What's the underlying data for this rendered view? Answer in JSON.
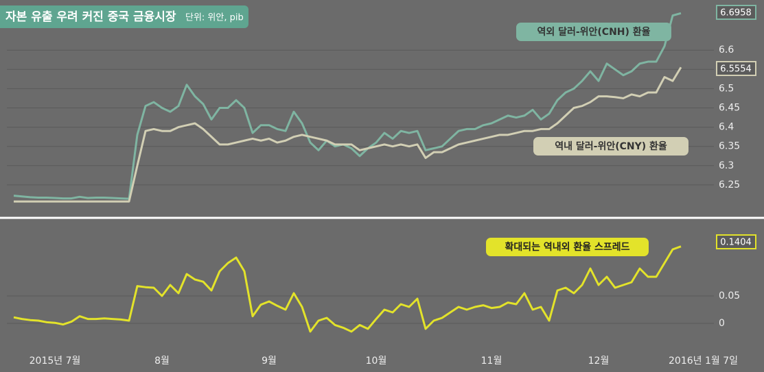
{
  "chart_data": {
    "type": "line",
    "title": "자본 유출 우려 커진 중국 금융시장",
    "subtitle": "단위: 위안, pib",
    "categories": [
      null,
      null,
      null,
      null,
      null,
      "2015년 7월",
      null,
      null,
      null,
      null,
      null,
      null,
      null,
      null,
      null,
      null,
      null,
      null,
      "8월",
      null,
      null,
      null,
      null,
      null,
      null,
      null,
      null,
      null,
      null,
      null,
      null,
      "9월",
      null,
      null,
      null,
      null,
      null,
      null,
      null,
      null,
      null,
      null,
      null,
      null,
      "10월",
      null,
      null,
      null,
      null,
      null,
      null,
      null,
      null,
      null,
      null,
      null,
      null,
      null,
      "11월",
      null,
      null,
      null,
      null,
      null,
      null,
      null,
      null,
      null,
      null,
      null,
      null,
      "12월",
      null,
      null,
      null,
      null,
      null,
      null,
      null,
      null,
      null,
      "2016년 1월 7일"
    ],
    "series": [
      {
        "name": "역외 달러-위안(CNH) 환율",
        "color": "#7fb5a2",
        "values": [
          6.222,
          6.22,
          6.218,
          6.217,
          6.217,
          6.216,
          6.215,
          6.215,
          6.219,
          6.216,
          6.217,
          6.217,
          6.216,
          6.215,
          6.214,
          6.38,
          6.455,
          6.465,
          6.45,
          6.44,
          6.455,
          6.51,
          6.48,
          6.46,
          6.42,
          6.45,
          6.45,
          6.47,
          6.45,
          6.385,
          6.405,
          6.405,
          6.395,
          6.39,
          6.44,
          6.41,
          6.36,
          6.34,
          6.365,
          6.35,
          6.355,
          6.345,
          6.325,
          6.345,
          6.36,
          6.385,
          6.37,
          6.39,
          6.385,
          6.39,
          6.34,
          6.345,
          6.35,
          6.37,
          6.39,
          6.395,
          6.395,
          6.405,
          6.41,
          6.42,
          6.43,
          6.425,
          6.43,
          6.445,
          6.42,
          6.435,
          6.47,
          6.49,
          6.5,
          6.52,
          6.545,
          6.52,
          6.565,
          6.55,
          6.535,
          6.545,
          6.565,
          6.57,
          6.57,
          6.61,
          6.69,
          6.6958
        ]
      },
      {
        "name": "역내 달러-위안(CNY) 환율",
        "color": "#d2cfb4",
        "values": [
          6.207,
          6.207,
          6.207,
          6.207,
          6.207,
          6.207,
          6.207,
          6.207,
          6.207,
          6.207,
          6.207,
          6.207,
          6.207,
          6.207,
          6.207,
          6.3,
          6.39,
          6.395,
          6.39,
          6.39,
          6.4,
          6.405,
          6.41,
          6.395,
          6.375,
          6.355,
          6.355,
          6.36,
          6.365,
          6.37,
          6.365,
          6.37,
          6.36,
          6.365,
          6.375,
          6.38,
          6.375,
          6.37,
          6.365,
          6.355,
          6.355,
          6.355,
          6.34,
          6.345,
          6.35,
          6.355,
          6.35,
          6.355,
          6.35,
          6.355,
          6.32,
          6.335,
          6.335,
          6.345,
          6.355,
          6.36,
          6.365,
          6.37,
          6.375,
          6.38,
          6.38,
          6.385,
          6.39,
          6.39,
          6.395,
          6.395,
          6.41,
          6.43,
          6.45,
          6.455,
          6.465,
          6.48,
          6.48,
          6.478,
          6.475,
          6.485,
          6.48,
          6.49,
          6.49,
          6.53,
          6.52,
          6.5554
        ]
      },
      {
        "name": "확대되는 역내외 환율 스프레드",
        "color": "#e3e32a",
        "axis": "y2",
        "values": [
          0.011,
          0.008,
          0.006,
          0.005,
          0.002,
          0.001,
          -0.002,
          0.003,
          0.013,
          0.008,
          0.008,
          0.009,
          0.008,
          0.007,
          0.005,
          0.068,
          0.066,
          0.065,
          0.05,
          0.07,
          0.055,
          0.09,
          0.08,
          0.076,
          0.06,
          0.095,
          0.11,
          0.12,
          0.095,
          0.013,
          0.034,
          0.04,
          0.032,
          0.025,
          0.055,
          0.03,
          -0.015,
          0.005,
          0.01,
          -0.003,
          -0.008,
          -0.015,
          -0.003,
          -0.01,
          0.008,
          0.025,
          0.02,
          0.035,
          0.03,
          0.045,
          -0.01,
          0.005,
          0.01,
          0.02,
          0.03,
          0.025,
          0.03,
          0.033,
          0.028,
          0.03,
          0.038,
          0.035,
          0.055,
          0.025,
          0.03,
          0.005,
          0.06,
          0.065,
          0.055,
          0.07,
          0.1,
          0.07,
          0.085,
          0.065,
          0.07,
          0.075,
          0.1,
          0.085,
          0.085,
          0.11,
          0.135,
          0.1404
        ]
      }
    ],
    "ylim": [
      6.2,
      6.7
    ],
    "yticks": [
      6.25,
      6.3,
      6.35,
      6.4,
      6.45,
      6.5,
      6.55,
      6.6
    ],
    "y2lim": [
      -0.04,
      0.18
    ],
    "y2ticks": [
      0,
      0.05
    ],
    "grid": true
  }
}
